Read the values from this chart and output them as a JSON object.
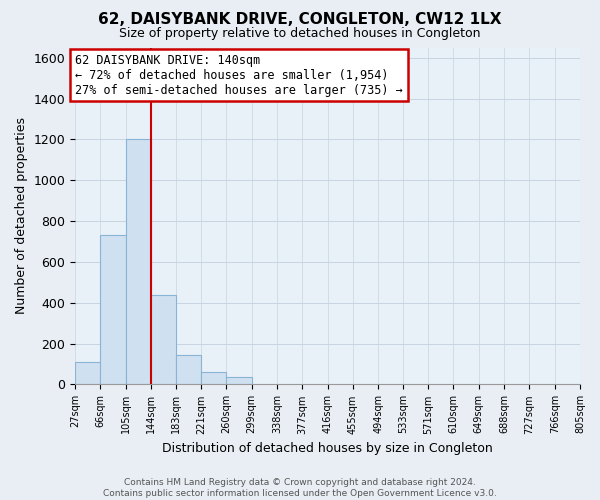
{
  "title": "62, DAISYBANK DRIVE, CONGLETON, CW12 1LX",
  "subtitle": "Size of property relative to detached houses in Congleton",
  "xlabel": "Distribution of detached houses by size in Congleton",
  "ylabel": "Number of detached properties",
  "bar_color": "#cfe0f0",
  "bar_edge_color": "#8ab4d4",
  "vline_color": "#cc0000",
  "vline_x": 144,
  "bin_edges": [
    27,
    66,
    105,
    144,
    183,
    221,
    260,
    299,
    338,
    377,
    416,
    455,
    494,
    533,
    571,
    610,
    649,
    688,
    727,
    766,
    805
  ],
  "bar_heights": [
    110,
    730,
    1200,
    440,
    145,
    60,
    35,
    0,
    0,
    0,
    0,
    0,
    0,
    0,
    0,
    0,
    0,
    0,
    0,
    0
  ],
  "ylim": [
    0,
    1650
  ],
  "yticks": [
    0,
    200,
    400,
    600,
    800,
    1000,
    1200,
    1400,
    1600
  ],
  "tick_labels": [
    "27sqm",
    "66sqm",
    "105sqm",
    "144sqm",
    "183sqm",
    "221sqm",
    "260sqm",
    "299sqm",
    "338sqm",
    "377sqm",
    "416sqm",
    "455sqm",
    "494sqm",
    "533sqm",
    "571sqm",
    "610sqm",
    "649sqm",
    "688sqm",
    "727sqm",
    "766sqm",
    "805sqm"
  ],
  "annotation_title": "62 DAISYBANK DRIVE: 140sqm",
  "annotation_line1": "← 72% of detached houses are smaller (1,954)",
  "annotation_line2": "27% of semi-detached houses are larger (735) →",
  "annotation_box_color": "#ffffff",
  "annotation_box_edge": "#cc0000",
  "footer_line1": "Contains HM Land Registry data © Crown copyright and database right 2024.",
  "footer_line2": "Contains public sector information licensed under the Open Government Licence v3.0.",
  "bg_color": "#e8eef4",
  "plot_bg_color": "#e8f0f8",
  "grid_color": "#c8d4e0"
}
